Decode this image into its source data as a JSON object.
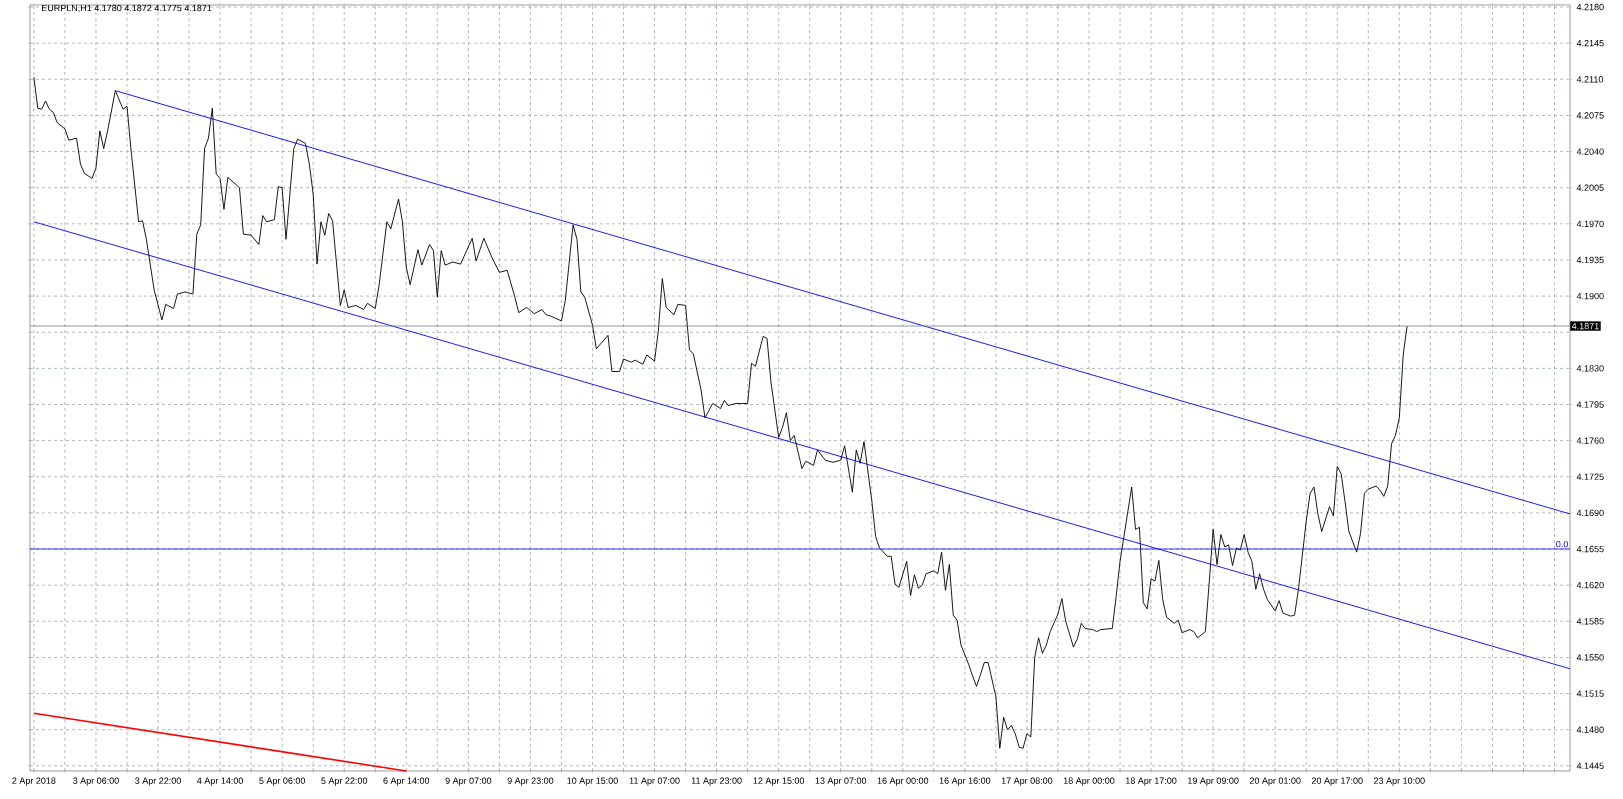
{
  "chart_data": {
    "type": "line",
    "title": "EURPLN,H1  4.1780 4.1872 4.1775 4.1871",
    "ylim": [
      4.144,
      4.2182
    ],
    "categories": [
      "2 Apr 2018",
      null,
      null,
      null,
      null,
      null,
      null,
      null,
      null,
      null,
      null,
      null,
      null,
      null,
      null,
      null,
      "3 Apr 06:00",
      null,
      null,
      null,
      null,
      null,
      null,
      null,
      null,
      null,
      null,
      null,
      null,
      null,
      null,
      null,
      "3 Apr 22:00",
      null,
      null,
      null,
      null,
      null,
      null,
      null,
      null,
      null,
      null,
      null,
      null,
      null,
      null,
      null,
      "4 Apr 14:00",
      null,
      null,
      null,
      null,
      null,
      null,
      null,
      null,
      null,
      null,
      null,
      null,
      null,
      null,
      null,
      "5 Apr 06:00",
      null,
      null,
      null,
      null,
      null,
      null,
      null,
      null,
      null,
      null,
      null,
      null,
      null,
      null,
      null,
      "5 Apr 22:00",
      null,
      null,
      null,
      null,
      null,
      null,
      null,
      null,
      null,
      null,
      null,
      null,
      null,
      null,
      null,
      "6 Apr 14:00",
      null,
      null,
      null,
      null,
      null,
      null,
      null,
      null,
      null,
      null,
      null,
      null,
      null,
      null,
      null,
      "9 Apr 07:00",
      null,
      null,
      null,
      null,
      null,
      null,
      null,
      null,
      null,
      null,
      null,
      null,
      null,
      null,
      null,
      "9 Apr 23:00",
      null,
      null,
      null,
      null,
      null,
      null,
      null,
      null,
      null,
      null,
      null,
      null,
      null,
      null,
      null,
      "10 Apr 15:00",
      null,
      null,
      null,
      null,
      null,
      null,
      null,
      null,
      null,
      null,
      null,
      null,
      null,
      null,
      null,
      "11 Apr 07:00",
      null,
      null,
      null,
      null,
      null,
      null,
      null,
      null,
      null,
      null,
      null,
      null,
      null,
      null,
      null,
      "11 Apr 23:00",
      null,
      null,
      null,
      null,
      null,
      null,
      null,
      null,
      null,
      null,
      null,
      null,
      null,
      null,
      null,
      "12 Apr 15:00",
      null,
      null,
      null,
      null,
      null,
      null,
      null,
      null,
      null,
      null,
      null,
      null,
      null,
      null,
      null,
      "13 Apr 07:00",
      null,
      null,
      null,
      null,
      null,
      null,
      null,
      null,
      null,
      null,
      null,
      null,
      null,
      null,
      null,
      "16 Apr 00:00",
      null,
      null,
      null,
      null,
      null,
      null,
      null,
      null,
      null,
      null,
      null,
      null,
      null,
      null,
      null,
      "16 Apr 16:00",
      null,
      null,
      null,
      null,
      null,
      null,
      null,
      null,
      null,
      null,
      null,
      null,
      null,
      null,
      null,
      "17 Apr 08:00",
      null,
      null,
      null,
      null,
      null,
      null,
      null,
      null,
      null,
      null,
      null,
      null,
      null,
      null,
      null,
      "18 Apr 00:00",
      null,
      null,
      null,
      null,
      null,
      null,
      null,
      null,
      null,
      null,
      null,
      null,
      null,
      null,
      null,
      "18 Apr 17:00",
      null,
      null,
      null,
      null,
      null,
      null,
      null,
      null,
      null,
      null,
      null,
      null,
      null,
      null,
      null,
      "19 Apr 09:00",
      null,
      null,
      null,
      null,
      null,
      null,
      null,
      null,
      null,
      null,
      null,
      null,
      null,
      null,
      null,
      "20 Apr 01:00",
      null,
      null,
      null,
      null,
      null,
      null,
      null,
      null,
      null,
      null,
      null,
      null,
      null,
      null,
      null,
      "20 Apr 17:00",
      null,
      null,
      null,
      null,
      null,
      null,
      null,
      null,
      null,
      null,
      null,
      null,
      null,
      null,
      null,
      "23 Apr 10:00",
      null,
      null,
      null,
      null,
      null,
      null,
      null,
      null,
      null,
      null,
      null,
      null,
      null,
      null,
      null,
      null,
      null,
      null,
      null,
      null,
      null,
      null,
      null,
      null,
      null,
      null,
      null,
      null,
      null,
      null,
      null,
      null,
      null,
      null,
      null,
      null,
      null,
      null,
      null,
      null,
      null,
      null,
      null,
      null
    ],
    "yticks": [
      {
        "value": 4.1445,
        "label": "4.1445"
      },
      {
        "value": 4.148,
        "label": "4.1480"
      },
      {
        "value": 4.1515,
        "label": "4.1515"
      },
      {
        "value": 4.155,
        "label": "4.1550"
      },
      {
        "value": 4.1585,
        "label": "4.1585"
      },
      {
        "value": 4.162,
        "label": "4.1620"
      },
      {
        "value": 4.1655,
        "label": "4.1655"
      },
      {
        "value": 4.169,
        "label": "4.1690"
      },
      {
        "value": 4.1725,
        "label": "4.1725"
      },
      {
        "value": 4.176,
        "label": "4.1760"
      },
      {
        "value": 4.1795,
        "label": "4.1795"
      },
      {
        "value": 4.183,
        "label": "4.1830"
      },
      {
        "value": 4.1865,
        "label": null
      },
      {
        "value": 4.19,
        "label": "4.1900"
      },
      {
        "value": 4.1935,
        "label": "4.1935"
      },
      {
        "value": 4.197,
        "label": "4.1970"
      },
      {
        "value": 4.2005,
        "label": "4.2005"
      },
      {
        "value": 4.204,
        "label": "4.2040"
      },
      {
        "value": 4.2075,
        "label": "4.2075"
      },
      {
        "value": 4.211,
        "label": "4.2110"
      },
      {
        "value": 4.2145,
        "label": "4.2145"
      },
      {
        "value": 4.218,
        "label": "4.2180"
      }
    ],
    "grid": true,
    "marker": "none",
    "line_style": "solid",
    "ref_lines": [
      {
        "axis": "y",
        "value": 4.1871,
        "label": "4.1871",
        "color": "#708090"
      },
      {
        "axis": "y",
        "value": 4.1655,
        "color": "#0000ff"
      }
    ],
    "annotations": [
      {
        "text": "0.0",
        "y": 4.1655
      }
    ],
    "series": [
      {
        "color": "#000000",
        "values": [
          4.2112,
          4.2082,
          4.2081,
          4.2089,
          4.2081,
          4.2078,
          4.2068,
          null,
          4.2062,
          4.2051,
          null,
          4.2053,
          4.2028,
          4.2019,
          null,
          4.2014,
          4.2024,
          4.206,
          4.2043,
          4.206,
          null,
          4.2099,
          null,
          4.2081,
          4.2084,
          4.2043,
          null,
          4.1972,
          4.1973,
          4.1955,
          null,
          4.1906,
          null,
          4.1877,
          4.1892,
          null,
          4.1888,
          4.1902,
          null,
          4.1904,
          null,
          4.1902,
          4.196,
          4.1969,
          4.2043,
          4.2053,
          4.2082,
          4.2018,
          4.2014,
          4.1984,
          4.2015,
          null,
          null,
          4.2005,
          4.196,
          null,
          4.1959,
          null,
          4.195,
          4.1978,
          4.1972,
          null,
          4.1974,
          4.2006,
          4.2005,
          4.1955,
          null,
          4.2043,
          4.2052,
          null,
          4.2048,
          4.2028,
          4.1999,
          4.1931,
          4.1972,
          4.1959,
          4.198,
          4.1973,
          null,
          4.1891,
          4.1906,
          4.1889,
          null,
          4.1891,
          null,
          4.1887,
          4.1893,
          null,
          4.1888,
          4.1911,
          null,
          4.1972,
          4.1965,
          null,
          4.1994,
          4.1972,
          4.1928,
          4.1911,
          null,
          4.1945,
          4.193,
          null,
          4.195,
          4.1944,
          4.1899,
          4.1944,
          4.193,
          null,
          4.1933,
          null,
          4.1931,
          null,
          null,
          4.1956,
          4.1934,
          null,
          4.1956,
          null,
          4.1938,
          null,
          4.1923,
          null,
          4.1925,
          null,
          4.1899,
          4.1884,
          null,
          4.1889,
          null,
          4.1883,
          null,
          4.1887,
          4.1882,
          4.1881,
          null,
          null,
          4.1876,
          4.1896,
          null,
          4.1969,
          4.1955,
          4.1904,
          4.1899,
          null,
          4.1872,
          4.1849,
          null,
          null,
          4.1862,
          4.1827,
          null,
          4.1827,
          4.1839,
          null,
          4.1836,
          4.1838,
          null,
          4.1834,
          4.1843,
          null,
          4.1837,
          4.1867,
          4.1917,
          4.1889,
          null,
          4.1882,
          4.1892,
          null,
          4.1891,
          4.1848,
          4.1844,
          null,
          4.1809,
          4.1782,
          null,
          4.1796,
          null,
          4.1791,
          4.1799,
          4.1794,
          null,
          4.1796,
          null,
          null,
          4.1796,
          4.1835,
          4.1832,
          null,
          4.1861,
          4.1859,
          4.1817,
          null,
          4.1763,
          4.1773,
          4.1787,
          4.176,
          4.1765,
          null,
          4.1733,
          4.174,
          null,
          4.1736,
          4.1751,
          null,
          4.1741,
          null,
          4.1739,
          null,
          4.1741,
          4.1755,
          null,
          4.171,
          4.1751,
          4.1738,
          4.1759,
          null,
          4.1702,
          4.1667,
          4.1656,
          null,
          4.1648,
          4.1648,
          4.1621,
          4.1618,
          null,
          4.1643,
          4.161,
          4.163,
          4.1617,
          4.162,
          4.1631,
          null,
          4.1634,
          4.1631,
          4.1652,
          4.1615,
          4.164,
          4.1591,
          4.1586,
          4.1562,
          null,
          4.1543,
          4.1532,
          4.1522,
          4.1533,
          4.1545,
          4.1545,
          null,
          4.1512,
          4.1462,
          4.1492,
          4.148,
          4.1484,
          4.1476,
          4.1463,
          4.1462,
          4.1476,
          4.1473,
          4.155,
          4.1569,
          4.1554,
          4.1562,
          4.1575,
          null,
          4.1592,
          4.1607,
          4.1585,
          null,
          4.156,
          4.1568,
          4.1583,
          4.1578,
          null,
          4.1577,
          4.1575,
          4.1577,
          null,
          null,
          4.1578,
          4.1609,
          4.1643,
          4.1667,
          null,
          4.1715,
          4.1674,
          4.1676,
          4.1603,
          4.1597,
          4.1626,
          4.1624,
          4.1644,
          4.1606,
          4.1589,
          null,
          4.1583,
          4.1586,
          4.1574,
          null,
          4.1577,
          4.1575,
          4.1569,
          null,
          4.1575,
          4.1623,
          4.1674,
          4.164,
          4.1669,
          4.1657,
          4.1659,
          4.1639,
          4.1656,
          4.1654,
          4.1669,
          4.1652,
          4.1643,
          4.1616,
          4.1631,
          4.1616,
          4.1606,
          null,
          4.1595,
          4.1605,
          4.1593,
          null,
          4.159,
          4.1591,
          4.1616,
          null,
          4.1682,
          4.1709,
          4.1715,
          4.1689,
          4.1672,
          4.1684,
          4.1696,
          4.1687,
          4.1735,
          4.1728,
          4.1701,
          4.1672,
          null,
          4.1652,
          4.167,
          4.1709,
          4.1713,
          null,
          4.1716,
          4.1712,
          4.1706,
          4.1716,
          4.1757,
          4.1765,
          4.1782,
          4.1843,
          4.1871,
          null,
          null,
          null,
          null,
          null,
          null,
          null,
          null,
          null,
          null,
          null,
          null,
          null,
          null,
          null,
          null,
          null,
          null,
          null,
          null,
          null,
          null,
          null,
          null,
          null,
          null,
          null,
          null,
          null,
          null,
          null,
          null,
          null,
          null,
          null,
          null,
          null,
          null,
          null,
          null,
          null,
          null
        ]
      },
      {
        "type": "line",
        "color": "#0000ff",
        "values": [
          null,
          null,
          null,
          null,
          null,
          null,
          null,
          null,
          null,
          null,
          null,
          null,
          null,
          null,
          null,
          null,
          null,
          null,
          null,
          null,
          null,
          4.2099,
          null,
          null,
          null,
          null,
          null,
          null,
          null,
          null,
          null,
          null,
          null,
          null,
          null,
          null,
          null,
          null,
          null,
          null,
          null,
          null,
          null,
          null,
          null,
          null,
          null,
          null,
          null,
          null,
          null,
          null,
          null,
          null,
          null,
          null,
          null,
          null,
          null,
          null,
          null,
          null,
          null,
          null,
          null,
          null,
          null,
          null,
          null,
          null,
          null,
          null,
          null,
          null,
          null,
          null,
          null,
          null,
          null,
          null,
          null,
          null,
          null,
          null,
          null,
          null,
          null,
          null,
          null,
          null,
          null,
          null,
          null,
          null,
          null,
          null,
          null,
          null,
          null,
          null,
          null,
          null,
          null,
          null,
          null,
          null,
          null,
          null,
          null,
          null,
          null,
          null,
          null,
          null,
          null,
          null,
          null,
          null,
          null,
          null,
          null,
          null,
          null,
          null,
          null,
          null,
          null,
          null,
          null,
          null,
          null,
          null,
          null,
          null,
          null,
          null,
          null,
          null,
          null,
          null,
          null,
          null,
          null,
          null,
          null,
          null,
          null,
          null,
          null,
          null,
          null,
          null,
          null,
          null,
          null,
          null,
          null,
          null,
          null,
          null,
          null,
          null,
          null,
          null,
          null,
          null,
          null,
          null,
          null,
          null,
          null,
          null,
          null,
          null,
          null,
          null,
          null,
          null,
          null,
          null,
          null,
          null,
          null,
          null,
          null,
          null,
          null,
          null,
          null,
          null,
          null,
          null,
          null,
          null,
          null,
          null,
          null,
          null,
          null,
          null,
          null,
          null,
          null,
          null,
          null,
          null,
          null,
          null,
          null,
          null,
          null,
          null,
          null,
          null,
          null,
          null,
          null,
          null,
          null,
          null,
          null,
          null,
          null,
          null,
          null,
          null,
          null,
          null,
          null,
          null,
          null,
          null,
          null,
          null,
          null,
          null,
          null,
          null,
          null,
          null,
          null,
          null,
          null,
          null,
          null,
          null,
          null,
          null,
          null,
          null,
          null,
          null,
          null,
          null,
          null,
          null,
          null,
          null,
          null,
          null,
          null,
          null,
          null,
          null,
          null,
          null,
          null,
          null,
          null,
          null,
          null,
          null,
          null,
          null,
          null,
          null,
          null,
          null,
          null,
          null,
          null,
          null,
          null,
          null,
          null,
          null,
          null,
          null,
          null,
          null,
          null,
          null,
          null,
          null,
          null,
          null,
          null,
          null,
          null,
          null,
          null,
          null,
          null,
          null,
          null,
          null,
          null,
          null,
          null,
          null,
          null,
          null,
          null,
          null,
          null,
          null,
          null,
          null,
          null,
          null,
          null,
          null,
          null,
          null,
          null,
          null,
          null,
          null,
          null,
          null,
          null,
          null,
          null,
          null,
          null,
          null,
          null,
          null,
          null,
          null,
          null,
          null,
          null,
          null,
          null,
          null,
          null,
          null,
          null,
          null,
          null,
          null,
          null,
          null,
          null,
          null,
          null,
          null,
          null,
          null,
          null,
          null,
          null,
          null,
          null,
          null,
          null,
          null,
          null,
          null,
          null,
          null,
          null,
          null,
          null,
          null,
          null,
          null,
          null,
          null,
          null,
          null,
          null,
          null,
          null,
          null,
          null,
          null,
          null,
          null,
          null,
          null,
          null,
          null,
          null,
          null,
          4.1689
        ]
      },
      {
        "type": "line",
        "color": "#0000ff",
        "values": [
          4.1972,
          null,
          null,
          null,
          null,
          null,
          null,
          null,
          null,
          null,
          null,
          null,
          null,
          null,
          null,
          null,
          null,
          null,
          null,
          null,
          null,
          null,
          null,
          null,
          null,
          null,
          null,
          null,
          null,
          null,
          null,
          null,
          null,
          null,
          null,
          null,
          null,
          null,
          null,
          null,
          null,
          null,
          null,
          null,
          null,
          null,
          null,
          null,
          null,
          null,
          null,
          null,
          null,
          null,
          null,
          null,
          null,
          null,
          null,
          null,
          null,
          null,
          null,
          null,
          null,
          null,
          null,
          null,
          null,
          null,
          null,
          null,
          null,
          null,
          null,
          null,
          null,
          null,
          null,
          null,
          null,
          null,
          null,
          null,
          null,
          null,
          null,
          null,
          null,
          null,
          null,
          null,
          null,
          null,
          null,
          null,
          null,
          null,
          null,
          null,
          null,
          null,
          null,
          null,
          null,
          null,
          null,
          null,
          null,
          null,
          null,
          null,
          null,
          null,
          null,
          null,
          null,
          null,
          null,
          null,
          null,
          null,
          null,
          null,
          null,
          null,
          null,
          null,
          null,
          null,
          null,
          null,
          null,
          null,
          null,
          null,
          null,
          null,
          null,
          null,
          null,
          null,
          null,
          null,
          null,
          null,
          null,
          null,
          null,
          null,
          null,
          null,
          null,
          null,
          null,
          null,
          null,
          null,
          null,
          null,
          null,
          null,
          null,
          null,
          null,
          null,
          null,
          null,
          null,
          null,
          null,
          null,
          null,
          null,
          null,
          null,
          null,
          null,
          null,
          null,
          null,
          null,
          null,
          null,
          null,
          null,
          null,
          null,
          null,
          null,
          null,
          null,
          null,
          null,
          null,
          null,
          null,
          null,
          null,
          null,
          null,
          null,
          null,
          null,
          null,
          null,
          null,
          null,
          null,
          null,
          null,
          null,
          null,
          null,
          null,
          null,
          null,
          null,
          null,
          null,
          null,
          null,
          null,
          null,
          null,
          null,
          null,
          null,
          null,
          null,
          null,
          null,
          null,
          null,
          null,
          null,
          null,
          null,
          null,
          null,
          null,
          null,
          null,
          null,
          null,
          null,
          null,
          null,
          null,
          null,
          null,
          null,
          null,
          null,
          null,
          null,
          null,
          null,
          null,
          null,
          null,
          null,
          null,
          null,
          null,
          null,
          null,
          null,
          null,
          null,
          null,
          null,
          null,
          null,
          null,
          null,
          null,
          null,
          null,
          null,
          null,
          null,
          null,
          null,
          null,
          null,
          null,
          null,
          null,
          null,
          null,
          null,
          null,
          null,
          null,
          null,
          null,
          null,
          null,
          null,
          null,
          null,
          null,
          null,
          null,
          null,
          null,
          null,
          null,
          null,
          null,
          null,
          null,
          null,
          null,
          null,
          null,
          null,
          null,
          null,
          null,
          null,
          null,
          null,
          null,
          null,
          null,
          null,
          null,
          null,
          null,
          null,
          null,
          null,
          null,
          null,
          null,
          null,
          null,
          null,
          null,
          null,
          null,
          null,
          null,
          null,
          null,
          null,
          null,
          null,
          null,
          null,
          null,
          null,
          null,
          null,
          null,
          null,
          null,
          null,
          null,
          null,
          null,
          null,
          null,
          null,
          null,
          null,
          null,
          null,
          null,
          null,
          null,
          null,
          null,
          null,
          null,
          null,
          null,
          null,
          null,
          null,
          null,
          null,
          null,
          null,
          null,
          null,
          null,
          null,
          null,
          null,
          null,
          null,
          null,
          null,
          4.1539
        ]
      },
      {
        "type": "line",
        "color": "#ff0000",
        "values": [
          4.1496,
          null,
          null,
          null,
          null,
          null,
          null,
          null,
          null,
          null,
          null,
          null,
          null,
          null,
          null,
          null,
          null,
          null,
          null,
          null,
          null,
          null,
          null,
          null,
          null,
          null,
          null,
          null,
          null,
          null,
          null,
          null,
          null,
          null,
          null,
          null,
          null,
          null,
          null,
          null,
          null,
          null,
          null,
          null,
          null,
          null,
          null,
          null,
          null,
          null,
          null,
          null,
          null,
          null,
          null,
          null,
          null,
          null,
          null,
          null,
          null,
          null,
          null,
          null,
          null,
          null,
          null,
          null,
          null,
          null,
          null,
          null,
          null,
          null,
          null,
          null,
          null,
          null,
          null,
          null,
          null,
          null,
          null,
          null,
          null,
          null,
          null,
          null,
          null,
          null,
          null,
          null,
          null,
          null,
          null,
          null,
          4.144,
          null,
          null,
          null,
          null,
          null,
          null,
          null,
          null,
          null,
          null,
          null,
          null,
          null,
          null,
          null,
          null,
          null,
          null,
          null,
          null,
          null,
          null,
          null,
          null,
          null,
          null,
          null,
          null,
          null,
          null,
          null,
          null,
          null,
          null,
          null,
          null,
          null,
          null,
          null,
          null,
          null,
          null,
          null,
          null,
          null,
          null,
          null,
          null,
          null,
          null,
          null,
          null,
          null,
          null,
          null,
          null,
          null,
          null,
          null,
          null,
          null,
          null,
          null,
          null,
          null,
          null,
          null,
          null,
          null,
          null,
          null,
          null,
          null,
          null,
          null,
          null,
          null,
          null,
          null,
          null,
          null,
          null,
          null,
          null,
          null,
          null,
          null,
          null,
          null,
          null,
          null,
          null,
          null,
          null,
          null,
          null,
          null,
          null,
          null,
          null,
          null,
          null,
          null,
          null,
          null,
          null,
          null,
          null,
          null,
          null,
          null,
          null,
          null,
          null,
          null,
          null,
          null,
          null,
          null,
          null,
          null,
          null,
          null,
          null,
          null,
          null,
          null,
          null,
          null,
          null,
          null,
          null,
          null,
          null,
          null,
          null,
          null,
          null,
          null,
          null,
          null,
          null,
          null,
          null,
          null,
          null,
          null,
          null,
          null,
          null,
          null,
          null,
          null,
          null,
          null,
          null,
          null,
          null,
          null,
          null,
          null,
          null,
          null,
          null,
          null,
          null,
          null,
          null,
          null,
          null,
          null,
          null,
          null,
          null,
          null,
          null,
          null,
          null,
          null,
          null,
          null,
          null,
          null,
          null,
          null,
          null,
          null,
          null,
          null,
          null,
          null,
          null,
          null,
          null,
          null,
          null,
          null,
          null,
          null,
          null,
          null,
          null,
          null,
          null,
          null,
          null,
          null,
          null,
          null,
          null,
          null,
          null,
          null,
          null,
          null,
          null,
          null,
          null,
          null,
          null,
          null,
          null,
          null,
          null,
          null,
          null,
          null,
          null,
          null,
          null,
          null,
          null,
          null,
          null,
          null,
          null,
          null,
          null,
          null,
          null,
          null,
          null,
          null,
          null,
          null,
          null,
          null,
          null,
          null,
          null,
          null,
          null,
          null,
          null,
          null,
          null,
          null,
          null,
          null,
          null,
          null,
          null,
          null,
          null,
          null,
          null,
          null,
          null,
          null,
          null,
          null,
          null,
          null,
          null,
          null,
          null,
          null,
          null,
          null,
          null,
          null,
          null,
          null,
          null,
          null,
          null,
          null,
          null,
          null,
          null,
          null,
          null,
          null,
          null,
          null,
          null,
          null,
          null,
          null,
          null
        ]
      }
    ]
  }
}
